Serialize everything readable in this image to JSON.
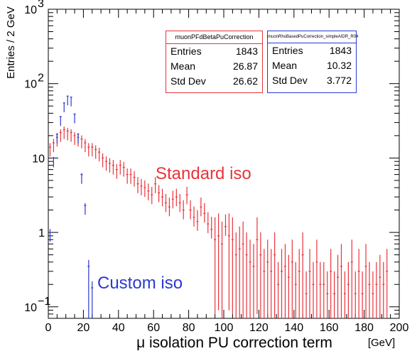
{
  "colors": {
    "standard": "#e8333b",
    "custom": "#2b3ad0",
    "axis": "#000000"
  },
  "chart_data": {
    "type": "scatter",
    "title": "",
    "xlabel": "μ isolation PU correction term",
    "xunit": "[GeV]",
    "ylabel": "Entries / 2 GeV",
    "xlim": [
      0,
      200
    ],
    "ylim": [
      0.07,
      1000
    ],
    "ylog": true,
    "x_ticks": [
      0,
      20,
      40,
      60,
      80,
      100,
      120,
      140,
      160,
      180,
      200
    ],
    "y_ticks": [
      {
        "value": 0.1,
        "base": "10",
        "exp": "−1"
      },
      {
        "value": 1,
        "base": "1",
        "exp": ""
      },
      {
        "value": 10,
        "base": "10",
        "exp": ""
      },
      {
        "value": 100,
        "base": "10",
        "exp": "2"
      },
      {
        "value": 1000,
        "base": "10",
        "exp": "3"
      }
    ],
    "grid": false,
    "series": [
      {
        "name": "muonPFdBetaPuCorrection",
        "color": "#e8333b",
        "bin_width": 2,
        "x": [
          1,
          3,
          5,
          7,
          9,
          11,
          13,
          15,
          17,
          19,
          21,
          23,
          25,
          27,
          29,
          31,
          33,
          35,
          37,
          39,
          41,
          43,
          45,
          47,
          49,
          51,
          53,
          55,
          57,
          59,
          61,
          63,
          65,
          67,
          69,
          71,
          73,
          75,
          77,
          79,
          81,
          83,
          85,
          87,
          89,
          91,
          93,
          95,
          97,
          99,
          101,
          103,
          105,
          107,
          109,
          111,
          113,
          115,
          117,
          119,
          121,
          123,
          125,
          127,
          129,
          131,
          133,
          135,
          137,
          139,
          141,
          143,
          145,
          147,
          149,
          151,
          153,
          155,
          157,
          159,
          161,
          163,
          165,
          167,
          169,
          171,
          173,
          175,
          177,
          179,
          181,
          183,
          185,
          187,
          189,
          191,
          193
        ],
        "values": [
          14,
          16,
          19,
          22,
          24,
          23,
          22,
          20,
          19,
          18,
          16,
          14,
          14,
          13,
          12,
          10,
          9,
          8.5,
          8,
          7,
          8,
          7.5,
          6,
          6,
          5.5,
          4.5,
          4.2,
          4,
          3.6,
          3.2,
          4.5,
          3.4,
          3,
          2.5,
          2.2,
          2.8,
          3,
          2.5,
          2,
          3.2,
          2,
          1.6,
          1.4,
          2.2,
          1.8,
          1.3,
          1.1,
          0.8,
          0.9,
          0.7,
          1.2,
          0.9,
          0.8,
          0.5,
          0.6,
          0.7,
          0.5,
          0.4,
          0.35,
          0.8,
          0.5,
          0.3,
          0.4,
          0.3,
          0.5,
          0.2,
          0.3,
          0.35,
          0.25,
          0.4,
          0.2,
          0.3,
          0.5,
          0.15,
          0.3,
          0.2,
          0.4,
          0.2,
          0.2,
          0.15,
          0.3,
          0.15,
          0.25,
          0.35,
          0.15,
          0.2,
          0.4,
          0.15,
          0.3,
          0.15,
          0.35,
          0.2,
          0.15,
          0.2,
          0.25,
          0.2,
          0.3
        ],
        "stats": {
          "entries_label": "Entries",
          "entries": "1843",
          "mean_label": "Mean",
          "mean": "26.87",
          "std_label": "Std Dev",
          "std": "26.62"
        }
      },
      {
        "name": "muonRhoBasedPuCorrection_simpleAIDR_R04",
        "color": "#2b3ad0",
        "bin_width": 2,
        "x": [
          1,
          3,
          5,
          7,
          9,
          11,
          13,
          15,
          17,
          19,
          21,
          23,
          25
        ],
        "values": [
          1.0,
          10,
          21,
          36,
          55,
          68,
          66,
          39,
          21,
          6,
          2.3,
          0.35,
          0.18
        ],
        "stats": {
          "entries_label": "Entries",
          "entries": "1843",
          "mean_label": "Mean",
          "mean": "10.32",
          "std_label": "Std Dev",
          "std": "3.772"
        }
      }
    ],
    "annotations": {
      "standard": "Standard iso",
      "custom": "Custom iso"
    }
  }
}
